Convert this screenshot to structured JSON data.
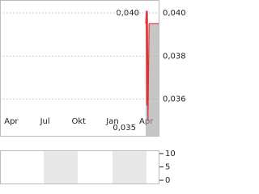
{
  "chart_data": [
    {
      "type": "area",
      "x": [
        11.95,
        12.0,
        12.05,
        12.1,
        12.15,
        12.25,
        13.1
      ],
      "series": [
        {
          "color": "#e03030",
          "fill": "#a0a0a0",
          "values": [
            0.0395,
            0.0401,
            0.0357,
            0.0401,
            0.035,
            0.0395,
            0.0395
          ]
        }
      ],
      "annotations": [
        "0,040",
        "0,035"
      ],
      "xlim": [
        -1,
        13.1
      ],
      "xticks": [
        {
          "value": 0,
          "label": "Apr"
        },
        {
          "value": 3,
          "label": "Jul"
        },
        {
          "value": 6,
          "label": "Okt"
        },
        {
          "value": 9,
          "label": "Jan"
        },
        {
          "value": 12,
          "label": "Apr"
        }
      ],
      "ylim": [
        0.0343,
        0.0406
      ],
      "yticks": [
        {
          "value": 0.036,
          "label": "0,036"
        },
        {
          "value": 0.038,
          "label": "0,038"
        },
        {
          "value": 0.04,
          "label": "0,040"
        }
      ],
      "grid": true
    },
    {
      "type": "bar",
      "ylim": [
        -1.5,
        11.2
      ],
      "yticks": [
        0,
        5,
        10
      ]
    }
  ]
}
